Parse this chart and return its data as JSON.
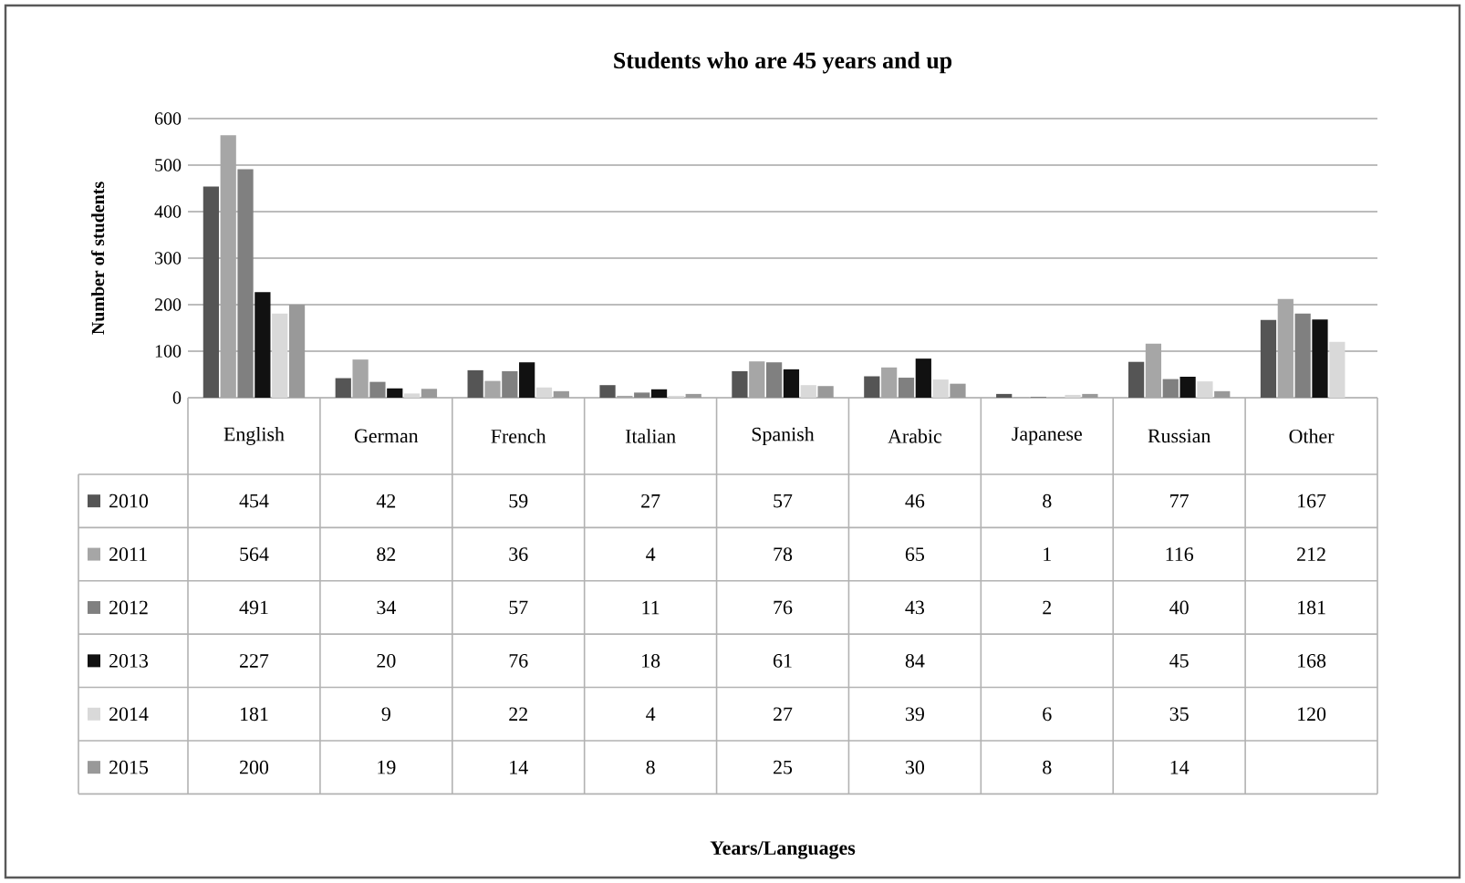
{
  "chart_data": {
    "type": "bar",
    "title": "Students who are 45 years and up",
    "ylabel": "Number of students",
    "annotations": [
      "Years/Languages"
    ],
    "categories": [
      "English",
      "German",
      "French",
      "Italian",
      "Spanish",
      "Arabic",
      "Japanese",
      "Russian",
      "Other"
    ],
    "series": [
      {
        "name": "2010",
        "color": "#555555",
        "values": [
          454,
          42,
          59,
          27,
          57,
          46,
          8,
          77,
          167
        ]
      },
      {
        "name": "2011",
        "color": "#a6a6a6",
        "values": [
          564,
          82,
          36,
          4,
          78,
          65,
          1,
          116,
          212
        ]
      },
      {
        "name": "2012",
        "color": "#808080",
        "values": [
          491,
          34,
          57,
          11,
          76,
          43,
          2,
          40,
          181
        ]
      },
      {
        "name": "2013",
        "color": "#111111",
        "values": [
          227,
          20,
          76,
          18,
          61,
          84,
          null,
          45,
          168
        ]
      },
      {
        "name": "2014",
        "color": "#d9d9d9",
        "values": [
          181,
          9,
          22,
          4,
          27,
          39,
          6,
          35,
          120
        ]
      },
      {
        "name": "2015",
        "color": "#999999",
        "values": [
          200,
          19,
          14,
          8,
          25,
          30,
          8,
          14,
          null
        ]
      }
    ],
    "ylim": [
      0,
      600
    ],
    "yticks": [
      0,
      100,
      200,
      300,
      400,
      500,
      600
    ],
    "grid": "y",
    "legend": "bottom",
    "data_labels": true
  }
}
